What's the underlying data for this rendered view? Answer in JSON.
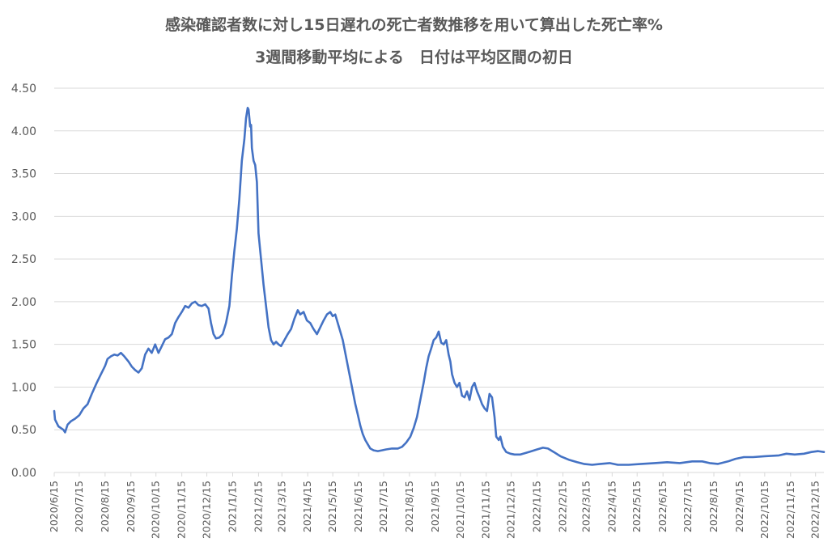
{
  "chart_data": {
    "type": "line",
    "title": "感染確認者数に対し15日遅れの死亡者数推移を用いて算出した死亡率%",
    "subtitle": "3週間移動平均による　日付は平均区間の初日",
    "xlabel": "",
    "ylabel": "",
    "ylim": [
      0,
      4.5
    ],
    "y_ticks": [
      "0.00",
      "0.50",
      "1.00",
      "1.50",
      "2.00",
      "2.50",
      "3.00",
      "3.50",
      "4.00",
      "4.50"
    ],
    "x_ticks": [
      "2020/6/15",
      "2020/7/15",
      "2020/8/15",
      "2020/9/15",
      "2020/10/15",
      "2020/11/15",
      "2020/12/15",
      "2021/1/15",
      "2021/2/15",
      "2021/3/15",
      "2021/4/15",
      "2021/5/15",
      "2021/6/15",
      "2021/7/15",
      "2021/8/15",
      "2021/9/15",
      "2021/10/15",
      "2021/11/15",
      "2021/12/15",
      "2022/1/15",
      "2022/2/15",
      "2022/3/15",
      "2022/4/15",
      "2022/5/15",
      "2022/6/15",
      "2022/7/15",
      "2022/8/15",
      "2022/9/15",
      "2022/10/15",
      "2022/11/15",
      "2022/12/15"
    ],
    "x_range": [
      "2020-06-15",
      "2022-12-25"
    ],
    "grid": "horizontal",
    "line_color": "#4472C4",
    "series": [
      {
        "points": [
          [
            "2020-06-15",
            0.72
          ],
          [
            "2020-06-16",
            0.62
          ],
          [
            "2020-06-18",
            0.58
          ],
          [
            "2020-06-20",
            0.54
          ],
          [
            "2020-06-23",
            0.52
          ],
          [
            "2020-06-26",
            0.5
          ],
          [
            "2020-06-28",
            0.47
          ],
          [
            "2020-07-01",
            0.56
          ],
          [
            "2020-07-05",
            0.6
          ],
          [
            "2020-07-10",
            0.63
          ],
          [
            "2020-07-15",
            0.67
          ],
          [
            "2020-07-20",
            0.75
          ],
          [
            "2020-07-25",
            0.8
          ],
          [
            "2020-07-30",
            0.92
          ],
          [
            "2020-08-05",
            1.05
          ],
          [
            "2020-08-10",
            1.15
          ],
          [
            "2020-08-15",
            1.25
          ],
          [
            "2020-08-18",
            1.33
          ],
          [
            "2020-08-22",
            1.36
          ],
          [
            "2020-08-26",
            1.38
          ],
          [
            "2020-08-30",
            1.37
          ],
          [
            "2020-09-03",
            1.4
          ],
          [
            "2020-09-07",
            1.36
          ],
          [
            "2020-09-12",
            1.3
          ],
          [
            "2020-09-16",
            1.24
          ],
          [
            "2020-09-20",
            1.2
          ],
          [
            "2020-09-24",
            1.17
          ],
          [
            "2020-09-28",
            1.22
          ],
          [
            "2020-10-02",
            1.38
          ],
          [
            "2020-10-06",
            1.45
          ],
          [
            "2020-10-10",
            1.4
          ],
          [
            "2020-10-14",
            1.5
          ],
          [
            "2020-10-18",
            1.4
          ],
          [
            "2020-10-22",
            1.48
          ],
          [
            "2020-10-26",
            1.56
          ],
          [
            "2020-10-30",
            1.58
          ],
          [
            "2020-11-03",
            1.62
          ],
          [
            "2020-11-07",
            1.75
          ],
          [
            "2020-11-11",
            1.82
          ],
          [
            "2020-11-15",
            1.88
          ],
          [
            "2020-11-19",
            1.95
          ],
          [
            "2020-11-23",
            1.93
          ],
          [
            "2020-11-27",
            1.98
          ],
          [
            "2020-12-01",
            2.0
          ],
          [
            "2020-12-05",
            1.96
          ],
          [
            "2020-12-09",
            1.95
          ],
          [
            "2020-12-13",
            1.97
          ],
          [
            "2020-12-17",
            1.92
          ],
          [
            "2020-12-20",
            1.75
          ],
          [
            "2020-12-23",
            1.62
          ],
          [
            "2020-12-26",
            1.57
          ],
          [
            "2020-12-30",
            1.58
          ],
          [
            "2021-01-03",
            1.62
          ],
          [
            "2021-01-07",
            1.75
          ],
          [
            "2021-01-11",
            1.95
          ],
          [
            "2021-01-14",
            2.3
          ],
          [
            "2021-01-17",
            2.6
          ],
          [
            "2021-01-20",
            2.85
          ],
          [
            "2021-01-23",
            3.2
          ],
          [
            "2021-01-26",
            3.65
          ],
          [
            "2021-01-29",
            3.9
          ],
          [
            "2021-01-31",
            4.15
          ],
          [
            "2021-02-02",
            4.27
          ],
          [
            "2021-02-03",
            4.25
          ],
          [
            "2021-02-05",
            4.05
          ],
          [
            "2021-02-06",
            4.07
          ],
          [
            "2021-02-07",
            3.8
          ],
          [
            "2021-02-09",
            3.65
          ],
          [
            "2021-02-11",
            3.6
          ],
          [
            "2021-02-13",
            3.4
          ],
          [
            "2021-02-15",
            2.8
          ],
          [
            "2021-02-18",
            2.5
          ],
          [
            "2021-02-21",
            2.2
          ],
          [
            "2021-02-24",
            1.95
          ],
          [
            "2021-02-27",
            1.7
          ],
          [
            "2021-03-02",
            1.55
          ],
          [
            "2021-03-05",
            1.5
          ],
          [
            "2021-03-08",
            1.53
          ],
          [
            "2021-03-11",
            1.5
          ],
          [
            "2021-03-14",
            1.48
          ],
          [
            "2021-03-18",
            1.55
          ],
          [
            "2021-03-22",
            1.62
          ],
          [
            "2021-03-26",
            1.68
          ],
          [
            "2021-03-30",
            1.8
          ],
          [
            "2021-04-03",
            1.9
          ],
          [
            "2021-04-06",
            1.85
          ],
          [
            "2021-04-10",
            1.88
          ],
          [
            "2021-04-14",
            1.78
          ],
          [
            "2021-04-18",
            1.75
          ],
          [
            "2021-04-22",
            1.68
          ],
          [
            "2021-04-26",
            1.62
          ],
          [
            "2021-04-30",
            1.7
          ],
          [
            "2021-05-04",
            1.78
          ],
          [
            "2021-05-08",
            1.85
          ],
          [
            "2021-05-12",
            1.88
          ],
          [
            "2021-05-15",
            1.83
          ],
          [
            "2021-05-18",
            1.85
          ],
          [
            "2021-05-21",
            1.75
          ],
          [
            "2021-05-24",
            1.65
          ],
          [
            "2021-05-27",
            1.55
          ],
          [
            "2021-05-30",
            1.4
          ],
          [
            "2021-06-02",
            1.25
          ],
          [
            "2021-06-05",
            1.1
          ],
          [
            "2021-06-08",
            0.95
          ],
          [
            "2021-06-11",
            0.8
          ],
          [
            "2021-06-14",
            0.68
          ],
          [
            "2021-06-17",
            0.55
          ],
          [
            "2021-06-20",
            0.45
          ],
          [
            "2021-06-23",
            0.38
          ],
          [
            "2021-06-26",
            0.33
          ],
          [
            "2021-06-29",
            0.28
          ],
          [
            "2021-07-03",
            0.26
          ],
          [
            "2021-07-08",
            0.25
          ],
          [
            "2021-07-13",
            0.26
          ],
          [
            "2021-07-18",
            0.27
          ],
          [
            "2021-07-25",
            0.28
          ],
          [
            "2021-08-01",
            0.28
          ],
          [
            "2021-08-06",
            0.3
          ],
          [
            "2021-08-11",
            0.35
          ],
          [
            "2021-08-16",
            0.42
          ],
          [
            "2021-08-20",
            0.52
          ],
          [
            "2021-08-24",
            0.65
          ],
          [
            "2021-08-28",
            0.85
          ],
          [
            "2021-09-01",
            1.05
          ],
          [
            "2021-09-04",
            1.22
          ],
          [
            "2021-09-07",
            1.36
          ],
          [
            "2021-09-10",
            1.45
          ],
          [
            "2021-09-13",
            1.55
          ],
          [
            "2021-09-16",
            1.58
          ],
          [
            "2021-09-19",
            1.65
          ],
          [
            "2021-09-22",
            1.52
          ],
          [
            "2021-09-25",
            1.5
          ],
          [
            "2021-09-28",
            1.55
          ],
          [
            "2021-10-01",
            1.38
          ],
          [
            "2021-10-03",
            1.3
          ],
          [
            "2021-10-05",
            1.15
          ],
          [
            "2021-10-08",
            1.05
          ],
          [
            "2021-10-11",
            1.0
          ],
          [
            "2021-10-14",
            1.05
          ],
          [
            "2021-10-17",
            0.9
          ],
          [
            "2021-10-20",
            0.88
          ],
          [
            "2021-10-23",
            0.95
          ],
          [
            "2021-10-26",
            0.85
          ],
          [
            "2021-10-29",
            1.0
          ],
          [
            "2021-11-01",
            1.05
          ],
          [
            "2021-11-04",
            0.95
          ],
          [
            "2021-11-07",
            0.88
          ],
          [
            "2021-11-10",
            0.8
          ],
          [
            "2021-11-13",
            0.75
          ],
          [
            "2021-11-16",
            0.72
          ],
          [
            "2021-11-19",
            0.92
          ],
          [
            "2021-11-22",
            0.88
          ],
          [
            "2021-11-25",
            0.65
          ],
          [
            "2021-11-27",
            0.42
          ],
          [
            "2021-11-30",
            0.38
          ],
          [
            "2021-12-02",
            0.42
          ],
          [
            "2021-12-05",
            0.3
          ],
          [
            "2021-12-09",
            0.24
          ],
          [
            "2021-12-14",
            0.22
          ],
          [
            "2021-12-19",
            0.21
          ],
          [
            "2021-12-26",
            0.21
          ],
          [
            "2022-01-05",
            0.24
          ],
          [
            "2022-01-15",
            0.27
          ],
          [
            "2022-01-22",
            0.29
          ],
          [
            "2022-01-28",
            0.28
          ],
          [
            "2022-02-04",
            0.24
          ],
          [
            "2022-02-12",
            0.19
          ],
          [
            "2022-02-22",
            0.15
          ],
          [
            "2022-03-04",
            0.12
          ],
          [
            "2022-03-12",
            0.1
          ],
          [
            "2022-03-22",
            0.09
          ],
          [
            "2022-04-01",
            0.1
          ],
          [
            "2022-04-12",
            0.11
          ],
          [
            "2022-04-22",
            0.09
          ],
          [
            "2022-05-05",
            0.09
          ],
          [
            "2022-05-20",
            0.1
          ],
          [
            "2022-06-05",
            0.11
          ],
          [
            "2022-06-20",
            0.12
          ],
          [
            "2022-07-05",
            0.11
          ],
          [
            "2022-07-20",
            0.13
          ],
          [
            "2022-08-01",
            0.13
          ],
          [
            "2022-08-10",
            0.11
          ],
          [
            "2022-08-20",
            0.1
          ],
          [
            "2022-09-01",
            0.13
          ],
          [
            "2022-09-10",
            0.16
          ],
          [
            "2022-09-20",
            0.18
          ],
          [
            "2022-10-01",
            0.18
          ],
          [
            "2022-10-15",
            0.19
          ],
          [
            "2022-11-01",
            0.2
          ],
          [
            "2022-11-10",
            0.22
          ],
          [
            "2022-11-20",
            0.21
          ],
          [
            "2022-12-01",
            0.22
          ],
          [
            "2022-12-10",
            0.24
          ],
          [
            "2022-12-18",
            0.25
          ],
          [
            "2022-12-25",
            0.24
          ]
        ]
      }
    ]
  }
}
